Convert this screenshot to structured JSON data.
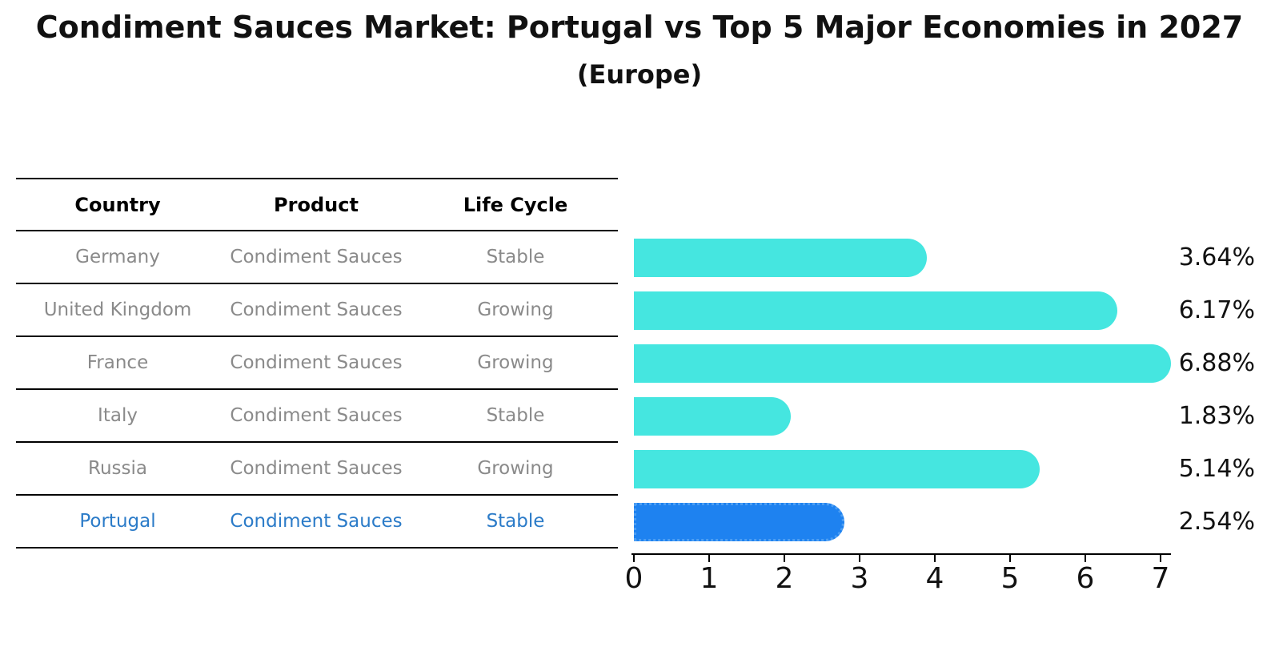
{
  "title": "Condiment Sauces Market: Portugal vs Top 5 Major Economies in 2027",
  "subtitle": "(Europe)",
  "table": {
    "headers": [
      "Country",
      "Product",
      "Life Cycle"
    ],
    "rows": [
      {
        "country": "Germany",
        "product": "Condiment Sauces",
        "life_cycle": "Stable",
        "highlight": false
      },
      {
        "country": "United Kingdom",
        "product": "Condiment Sauces",
        "life_cycle": "Growing",
        "highlight": false
      },
      {
        "country": "France",
        "product": "Condiment Sauces",
        "life_cycle": "Growing",
        "highlight": false
      },
      {
        "country": "Italy",
        "product": "Condiment Sauces",
        "life_cycle": "Stable",
        "highlight": false
      },
      {
        "country": "Russia",
        "product": "Condiment Sauces",
        "life_cycle": "Growing",
        "highlight": false
      },
      {
        "country": "Portugal",
        "product": "Condiment Sauces",
        "life_cycle": "Stable",
        "highlight": true
      }
    ]
  },
  "chart_data": {
    "type": "bar",
    "orientation": "horizontal",
    "title": "Condiment Sauces Market: Portugal vs Top 5 Major Economies in 2027",
    "subtitle": "(Europe)",
    "categories": [
      "Germany",
      "United Kingdom",
      "France",
      "Italy",
      "Russia",
      "Portugal"
    ],
    "values": [
      3.64,
      6.17,
      6.88,
      1.83,
      5.14,
      2.54
    ],
    "value_labels": [
      "3.64%",
      "6.17%",
      "6.88%",
      "1.83%",
      "5.14%",
      "2.54%"
    ],
    "value_suffix": "%",
    "xlabel": "",
    "ylabel": "",
    "xlim": [
      0,
      7
    ],
    "xticks": [
      "0",
      "1",
      "2",
      "3",
      "4",
      "5",
      "6",
      "7"
    ],
    "grid": false,
    "legend": null,
    "bar_color": "#45e6e0",
    "highlight_index": 5,
    "highlight_color": "#1e82f0",
    "highlight_border_color": "#4d9ef3",
    "highlight_border_style": "dotted"
  },
  "colors": {
    "background": "#ffffff",
    "table_header_text": "#000000",
    "table_text": "#8a8a8a",
    "highlight_text": "#2b7bc8",
    "bar": "#45e6e0",
    "highlight_bar": "#1e82f0",
    "axis": "#000000",
    "value_label_text": "#111111"
  }
}
